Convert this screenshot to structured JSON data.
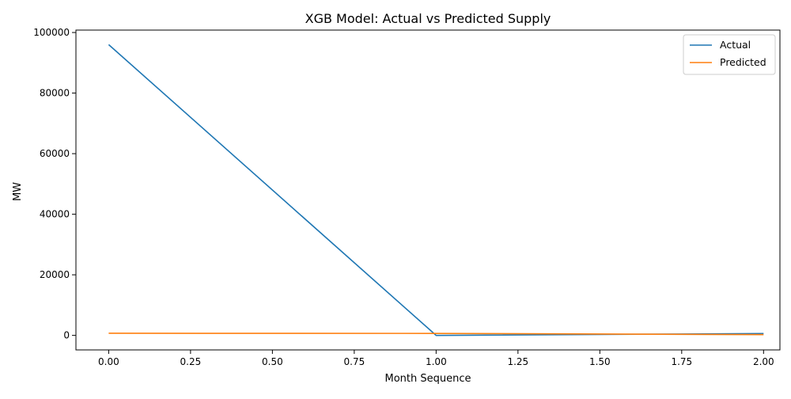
{
  "chart_data": {
    "type": "line",
    "title": "XGB Model: Actual vs Predicted Supply",
    "xlabel": "Month Sequence",
    "ylabel": "MW",
    "xlim": [
      -0.1,
      2.05
    ],
    "ylim": [
      -4800,
      100800
    ],
    "x_ticks": [
      0.0,
      0.25,
      0.5,
      0.75,
      1.0,
      1.25,
      1.5,
      1.75,
      2.0
    ],
    "x_tick_labels": [
      "0.00",
      "0.25",
      "0.50",
      "0.75",
      "1.00",
      "1.25",
      "1.50",
      "1.75",
      "2.00"
    ],
    "y_ticks": [
      0,
      20000,
      40000,
      60000,
      80000,
      100000
    ],
    "y_tick_labels": [
      "0",
      "20000",
      "40000",
      "60000",
      "80000",
      "100000"
    ],
    "x": [
      0,
      1,
      2
    ],
    "series": [
      {
        "name": "Actual",
        "color": "#1f77b4",
        "values": [
          96000,
          0,
          600
        ]
      },
      {
        "name": "Predicted",
        "color": "#ff7f0e",
        "values": [
          700,
          650,
          250
        ]
      }
    ],
    "grid": false,
    "legend_position": "top-right"
  }
}
